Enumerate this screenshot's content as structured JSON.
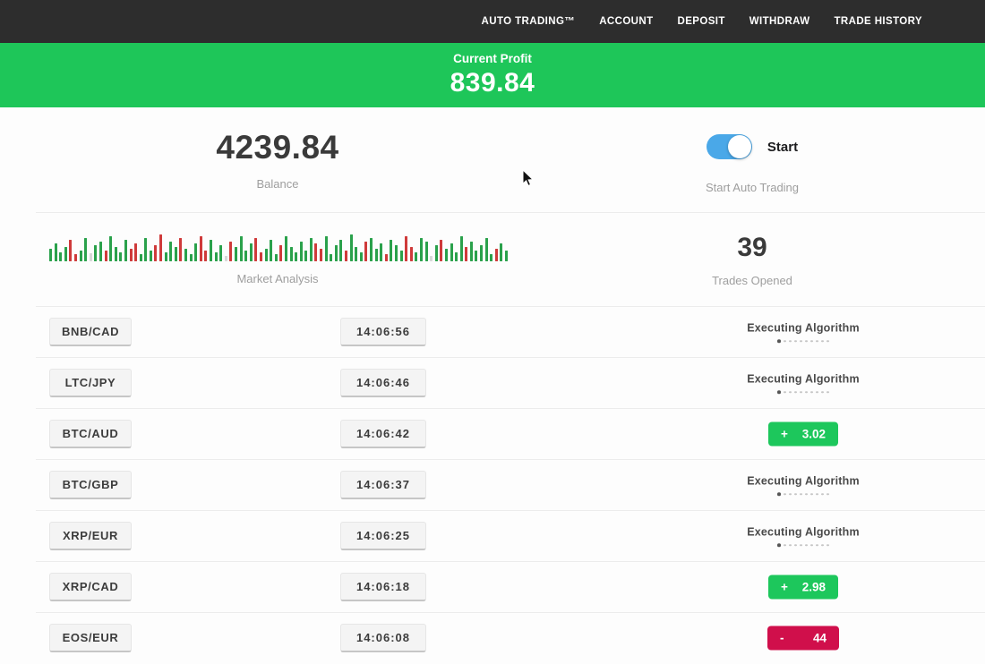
{
  "nav": {
    "items": [
      {
        "label": "AUTO TRADING™"
      },
      {
        "label": "ACCOUNT"
      },
      {
        "label": "DEPOSIT"
      },
      {
        "label": "WITHDRAW"
      },
      {
        "label": "TRADE HISTORY"
      }
    ]
  },
  "banner": {
    "label": "Current Profit",
    "value": "839.84"
  },
  "account": {
    "balance": "4239.84",
    "balance_label": "Balance",
    "toggle_label": "Start",
    "toggle_sublabel": "Start Auto Trading",
    "toggle_state": "on"
  },
  "market": {
    "label": "Market Analysis",
    "trades_opened": "39",
    "trades_opened_label": "Trades Opened",
    "bars": [
      [
        14,
        "g"
      ],
      [
        20,
        "g"
      ],
      [
        10,
        "g"
      ],
      [
        16,
        "g"
      ],
      [
        24,
        "r"
      ],
      [
        8,
        "r"
      ],
      [
        12,
        "g"
      ],
      [
        26,
        "g"
      ],
      [
        9,
        "n"
      ],
      [
        18,
        "g"
      ],
      [
        22,
        "g"
      ],
      [
        12,
        "r"
      ],
      [
        28,
        "g"
      ],
      [
        16,
        "g"
      ],
      [
        10,
        "g"
      ],
      [
        24,
        "g"
      ],
      [
        14,
        "r"
      ],
      [
        20,
        "r"
      ],
      [
        8,
        "g"
      ],
      [
        26,
        "g"
      ],
      [
        12,
        "g"
      ],
      [
        18,
        "r"
      ],
      [
        30,
        "r"
      ],
      [
        10,
        "g"
      ],
      [
        22,
        "g"
      ],
      [
        16,
        "g"
      ],
      [
        26,
        "r"
      ],
      [
        14,
        "g"
      ],
      [
        8,
        "g"
      ],
      [
        20,
        "g"
      ],
      [
        28,
        "r"
      ],
      [
        12,
        "r"
      ],
      [
        24,
        "g"
      ],
      [
        10,
        "g"
      ],
      [
        18,
        "g"
      ],
      [
        6,
        "n"
      ],
      [
        22,
        "r"
      ],
      [
        16,
        "g"
      ],
      [
        28,
        "g"
      ],
      [
        12,
        "g"
      ],
      [
        20,
        "g"
      ],
      [
        26,
        "r"
      ],
      [
        10,
        "r"
      ],
      [
        14,
        "g"
      ],
      [
        24,
        "g"
      ],
      [
        8,
        "g"
      ],
      [
        18,
        "r"
      ],
      [
        28,
        "g"
      ],
      [
        16,
        "g"
      ],
      [
        10,
        "g"
      ],
      [
        22,
        "g"
      ],
      [
        12,
        "g"
      ],
      [
        26,
        "g"
      ],
      [
        20,
        "r"
      ],
      [
        14,
        "r"
      ],
      [
        28,
        "g"
      ],
      [
        8,
        "g"
      ],
      [
        18,
        "g"
      ],
      [
        24,
        "g"
      ],
      [
        12,
        "r"
      ],
      [
        30,
        "g"
      ],
      [
        16,
        "g"
      ],
      [
        10,
        "g"
      ],
      [
        22,
        "r"
      ],
      [
        26,
        "g"
      ],
      [
        14,
        "g"
      ],
      [
        20,
        "g"
      ],
      [
        8,
        "r"
      ],
      [
        24,
        "g"
      ],
      [
        18,
        "g"
      ],
      [
        12,
        "g"
      ],
      [
        28,
        "r"
      ],
      [
        16,
        "r"
      ],
      [
        10,
        "g"
      ],
      [
        26,
        "g"
      ],
      [
        22,
        "g"
      ],
      [
        6,
        "n"
      ],
      [
        18,
        "g"
      ],
      [
        24,
        "r"
      ],
      [
        14,
        "g"
      ],
      [
        20,
        "g"
      ],
      [
        10,
        "g"
      ],
      [
        28,
        "g"
      ],
      [
        16,
        "r"
      ],
      [
        22,
        "g"
      ],
      [
        12,
        "g"
      ],
      [
        18,
        "g"
      ],
      [
        26,
        "g"
      ],
      [
        8,
        "g"
      ],
      [
        14,
        "r"
      ],
      [
        20,
        "g"
      ],
      [
        12,
        "g"
      ]
    ]
  },
  "trades": {
    "executing_label": "Executing Algorithm",
    "rows": [
      {
        "pair": "BNB/CAD",
        "time": "14:06:56",
        "status": "executing"
      },
      {
        "pair": "LTC/JPY",
        "time": "14:06:46",
        "status": "executing"
      },
      {
        "pair": "BTC/AUD",
        "time": "14:06:42",
        "status": "profit",
        "sign": "+",
        "value": "3.02"
      },
      {
        "pair": "BTC/GBP",
        "time": "14:06:37",
        "status": "executing"
      },
      {
        "pair": "XRP/EUR",
        "time": "14:06:25",
        "status": "executing"
      },
      {
        "pair": "XRP/CAD",
        "time": "14:06:18",
        "status": "profit",
        "sign": "+",
        "value": "2.98"
      },
      {
        "pair": "EOS/EUR",
        "time": "14:06:08",
        "status": "loss",
        "sign": "-",
        "value": "44"
      }
    ]
  },
  "colors": {
    "nav_bg": "#2d2d2d",
    "banner_green": "#1ec659",
    "profit_badge_green": "#1dc75c",
    "loss_badge_red": "#d00f4b",
    "toggle_blue": "#4aa8e8",
    "chart_green": "#2aa14b",
    "chart_red": "#cf3a3a"
  }
}
